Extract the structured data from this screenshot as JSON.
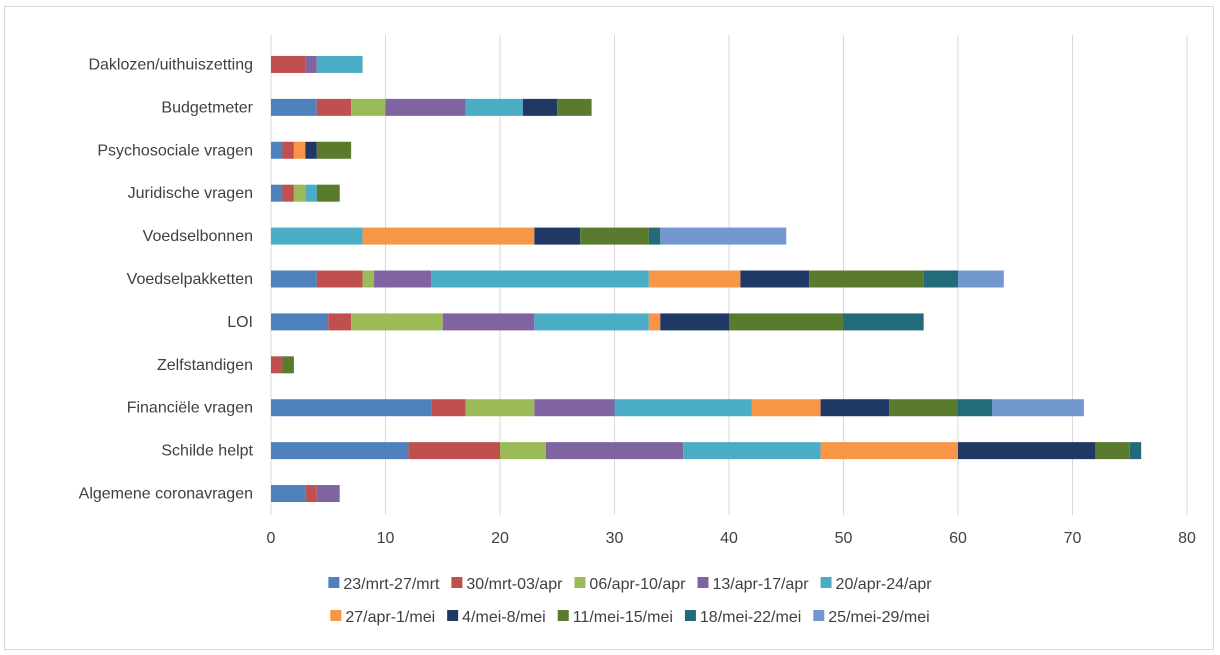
{
  "chart_data": {
    "type": "bar",
    "orientation": "horizontal",
    "stacked": true,
    "title": "",
    "xlabel": "",
    "ylabel": "",
    "xlim": [
      0,
      80
    ],
    "x_ticks": [
      "0",
      "10",
      "20",
      "30",
      "40",
      "50",
      "60",
      "70",
      "80"
    ],
    "grid": "vertical",
    "legend_position": "bottom",
    "categories": [
      "Daklozen/uithuiszetting",
      "Budgetmeter",
      "Psychosociale vragen",
      "Juridische vragen",
      "Voedselbonnen",
      "Voedselpakketten",
      "LOI",
      "Zelfstandigen",
      "Financiële vragen",
      "Schilde helpt",
      "Algemene coronavragen"
    ],
    "series": [
      {
        "name": "23/mrt-27/mrt",
        "color": "#4f81bd",
        "values": [
          0,
          4,
          1,
          1,
          0,
          4,
          5,
          0,
          14,
          12,
          3
        ]
      },
      {
        "name": "30/mrt-03/apr",
        "color": "#c0504d",
        "values": [
          3,
          3,
          1,
          1,
          0,
          4,
          2,
          1,
          3,
          8,
          1
        ]
      },
      {
        "name": "06/apr-10/apr",
        "color": "#9bbb59",
        "values": [
          0,
          3,
          0,
          1,
          0,
          1,
          8,
          0,
          6,
          4,
          0
        ]
      },
      {
        "name": "13/apr-17/apr",
        "color": "#8064a2",
        "values": [
          1,
          7,
          0,
          0,
          0,
          5,
          8,
          0,
          7,
          12,
          2
        ]
      },
      {
        "name": "20/apr-24/apr",
        "color": "#4bacc6",
        "values": [
          4,
          5,
          0,
          1,
          8,
          19,
          10,
          0,
          12,
          12,
          0
        ]
      },
      {
        "name": "27/apr-1/mei",
        "color": "#f79646",
        "values": [
          0,
          0,
          1,
          0,
          15,
          8,
          1,
          0,
          6,
          12,
          0
        ]
      },
      {
        "name": "4/mei-8/mei",
        "color": "#1f3864",
        "values": [
          0,
          3,
          1,
          0,
          4,
          6,
          6,
          0,
          6,
          12,
          0
        ]
      },
      {
        "name": "11/mei-15/mei",
        "color": "#5a7a2e",
        "values": [
          0,
          3,
          3,
          2,
          6,
          10,
          10,
          1,
          6,
          3,
          0
        ]
      },
      {
        "name": "18/mei-22/mei",
        "color": "#236b7a",
        "values": [
          0,
          0,
          0,
          0,
          1,
          3,
          7,
          0,
          3,
          1,
          0
        ]
      },
      {
        "name": "25/mei-29/mei",
        "color": "#7398cf",
        "values": [
          0,
          0,
          0,
          0,
          11,
          4,
          0,
          0,
          8,
          0,
          0
        ]
      }
    ]
  }
}
